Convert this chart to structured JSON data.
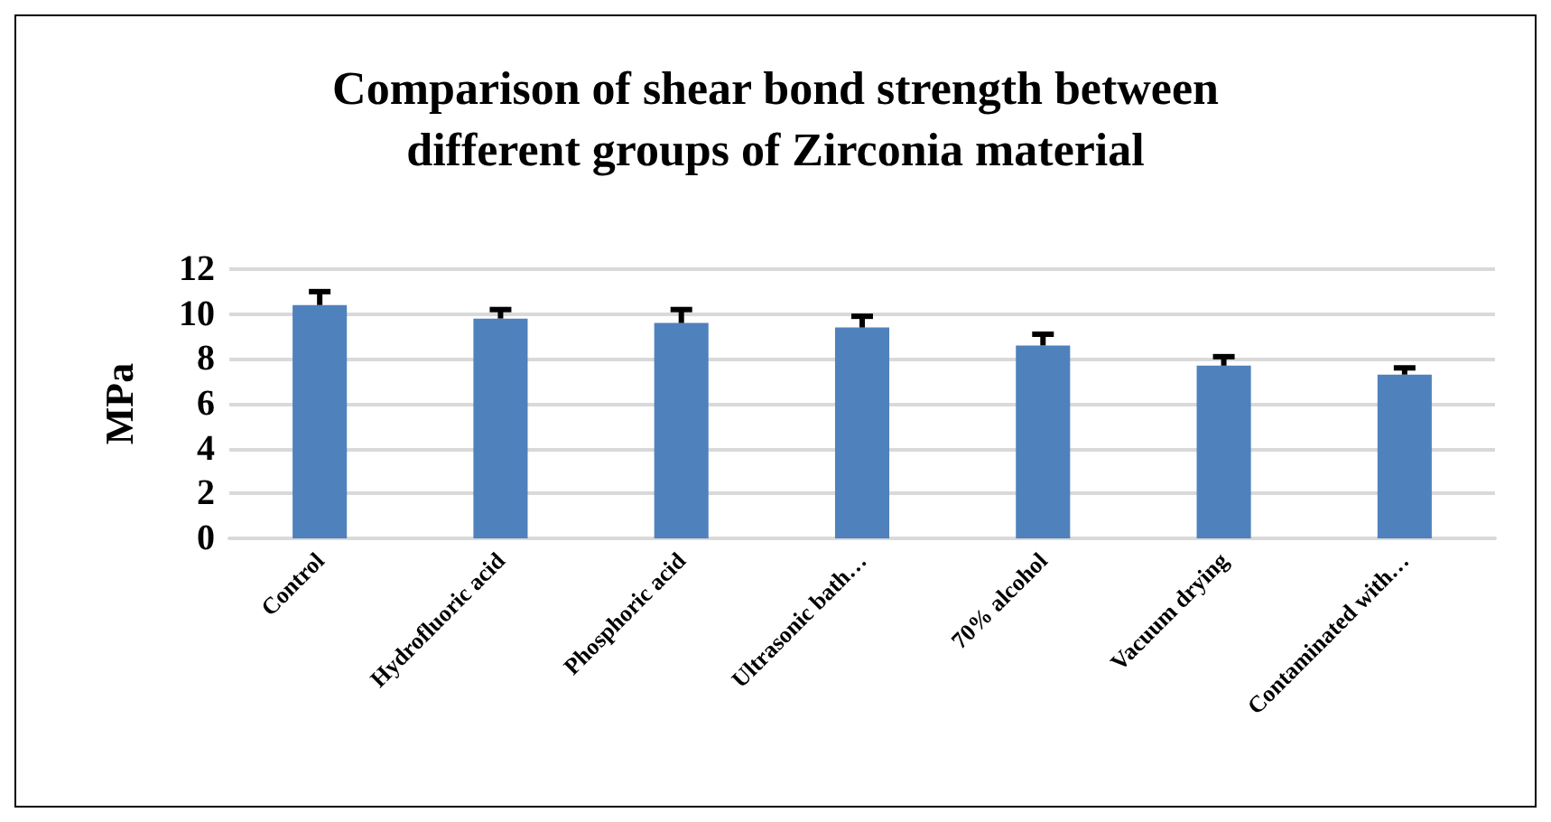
{
  "chart_data": {
    "type": "bar",
    "title": "Comparison of shear bond strength between\ndifferent groups of Zirconia material",
    "ylabel": "MPa",
    "categories": [
      "Control",
      "Hydrofluoric acid",
      "Phosphoric acid",
      "Ultrasonic bath…",
      "70% alcohol",
      "Vacuum drying",
      "Contaminated with…"
    ],
    "values": [
      10.4,
      9.8,
      9.6,
      9.4,
      8.6,
      7.7,
      7.3
    ],
    "errors": [
      [
        10.4,
        11.0
      ],
      [
        9.8,
        10.2
      ],
      [
        9.6,
        10.2
      ],
      [
        9.4,
        9.9
      ],
      [
        8.6,
        9.1
      ],
      [
        7.7,
        8.1
      ],
      [
        7.3,
        7.6
      ]
    ],
    "color": "#4f81bd",
    "ylim": [
      0,
      12
    ],
    "yticks": [
      0,
      2,
      4,
      6,
      8,
      10,
      12
    ],
    "grid": "y"
  }
}
